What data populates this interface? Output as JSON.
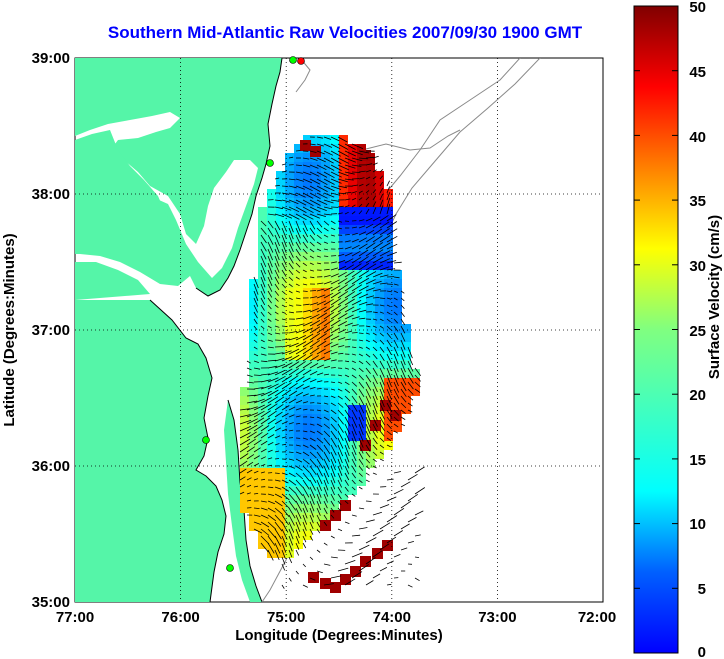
{
  "title": "Southern Mid-Atlantic Raw Velocities 2007/09/30 1900 GMT",
  "x_axis": {
    "label": "Longitude (Degrees:Minutes)",
    "ticks": [
      "77:00",
      "76:00",
      "75:00",
      "74:00",
      "73:00",
      "72:00"
    ]
  },
  "y_axis": {
    "label": "Latitude (Degrees:Minutes)",
    "ticks": [
      "39:00",
      "38:00",
      "37:00",
      "36:00",
      "35:00"
    ]
  },
  "colorbar": {
    "label": "Surface Velocity (cm/s)",
    "ticks": [
      "50",
      "45",
      "40",
      "35",
      "30",
      "25",
      "20",
      "15",
      "10",
      "5",
      "0"
    ],
    "min": 0,
    "max": 50,
    "colormap": "jet"
  },
  "map": {
    "lon_range": [
      -77,
      -72
    ],
    "lat_range": [
      35,
      39
    ],
    "land_color": "#55f5a8",
    "coast_color": "#000000",
    "bathymetry_color": "#8a8a8a",
    "grid": "dotted",
    "station_marker_color": "#00ff00",
    "station_marker_color_alt": "#ff0000"
  }
}
